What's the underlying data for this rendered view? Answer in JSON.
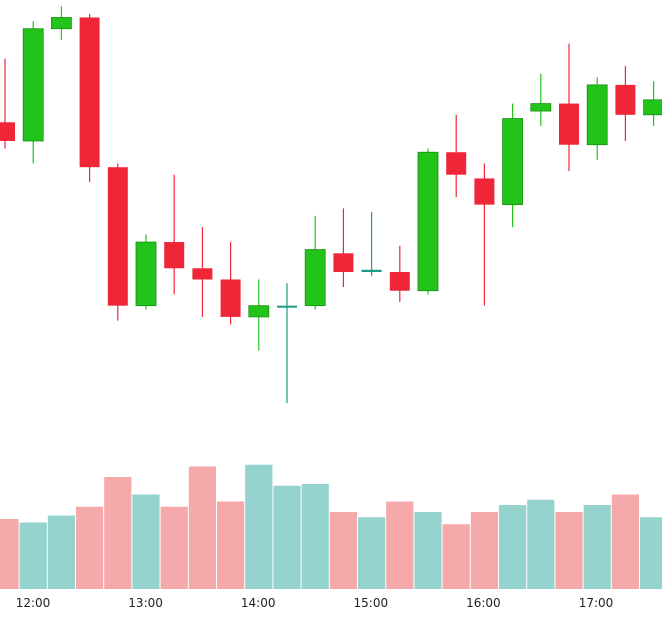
{
  "chart_data": {
    "type": "candlestick",
    "price_unit": "approx (no price axis shown)",
    "x_ticks": [
      "12:00",
      "13:00",
      "14:00",
      "15:00",
      "16:00",
      "17:00"
    ],
    "colors": {
      "up": "#22c41a",
      "down": "#ee2638",
      "up_volume": "#94d3ce",
      "down_volume": "#f6a9aa",
      "doji": "#1a9c88"
    },
    "candles": [
      {
        "time": "11:45",
        "open": 76.5,
        "high": 85.0,
        "low": 73.0,
        "close": 74.0
      },
      {
        "time": "11:55",
        "open": 74.0,
        "high": 90.0,
        "low": 71.0,
        "close": 89.0
      },
      {
        "time": "12:05",
        "open": 89.0,
        "high": 92.0,
        "low": 87.5,
        "close": 90.5
      },
      {
        "time": "12:20",
        "open": 90.5,
        "high": 91.0,
        "low": 68.5,
        "close": 70.5
      },
      {
        "time": "12:35",
        "open": 70.5,
        "high": 71.0,
        "low": 50.0,
        "close": 52.0
      },
      {
        "time": "12:50",
        "open": 52.0,
        "high": 61.5,
        "low": 51.5,
        "close": 60.5
      },
      {
        "time": "13:05",
        "open": 60.5,
        "high": 69.5,
        "low": 53.5,
        "close": 57.0
      },
      {
        "time": "13:20",
        "open": 57.0,
        "high": 62.5,
        "low": 50.5,
        "close": 55.5
      },
      {
        "time": "13:35",
        "open": 55.5,
        "high": 60.5,
        "low": 49.5,
        "close": 50.5
      },
      {
        "time": "13:50",
        "open": 50.5,
        "high": 55.5,
        "low": 46.0,
        "close": 52.0
      },
      {
        "time": "14:05",
        "open": 52.0,
        "high": 55.0,
        "low": 39.0,
        "close": 52.0
      },
      {
        "time": "14:20",
        "open": 52.0,
        "high": 64.0,
        "low": 51.5,
        "close": 59.5
      },
      {
        "time": "14:35",
        "open": 59.0,
        "high": 65.0,
        "low": 54.5,
        "close": 56.5
      },
      {
        "time": "14:50",
        "open": 56.5,
        "high": 64.5,
        "low": 56.0,
        "close": 56.8
      },
      {
        "time": "15:05",
        "open": 56.5,
        "high": 60.0,
        "low": 52.5,
        "close": 54.0
      },
      {
        "time": "15:20",
        "open": 54.0,
        "high": 73.0,
        "low": 53.5,
        "close": 72.5
      },
      {
        "time": "15:35",
        "open": 72.5,
        "high": 77.5,
        "low": 66.5,
        "close": 69.5
      },
      {
        "time": "15:50",
        "open": 69.0,
        "high": 71.0,
        "low": 52.0,
        "close": 65.5
      },
      {
        "time": "16:05",
        "open": 65.5,
        "high": 79.0,
        "low": 62.5,
        "close": 77.0
      },
      {
        "time": "16:20",
        "open": 78.0,
        "high": 83.0,
        "low": 76.0,
        "close": 79.0
      },
      {
        "time": "16:35",
        "open": 79.0,
        "high": 87.0,
        "low": 70.0,
        "close": 73.5
      },
      {
        "time": "16:50",
        "open": 73.5,
        "high": 82.5,
        "low": 71.5,
        "close": 81.5
      },
      {
        "time": "17:05",
        "open": 81.5,
        "high": 84.0,
        "low": 74.0,
        "close": 77.5
      },
      {
        "time": "17:20",
        "open": 77.5,
        "high": 82.0,
        "low": 76.0,
        "close": 79.5
      }
    ],
    "volume": [
      40,
      38,
      42,
      47,
      64,
      54,
      47,
      70,
      50,
      71,
      59,
      60,
      44,
      41,
      50,
      44,
      37,
      44,
      48,
      51,
      44,
      48,
      54,
      41
    ],
    "volume_direction": [
      "down",
      "up",
      "up",
      "down",
      "down",
      "up",
      "down",
      "down",
      "down",
      "up",
      "up",
      "up",
      "down",
      "up",
      "down",
      "up",
      "down",
      "down",
      "up",
      "up",
      "down",
      "up",
      "down",
      "up"
    ],
    "grid": false,
    "legend": "none",
    "title": "",
    "xlabel": "",
    "ylabel": ""
  }
}
